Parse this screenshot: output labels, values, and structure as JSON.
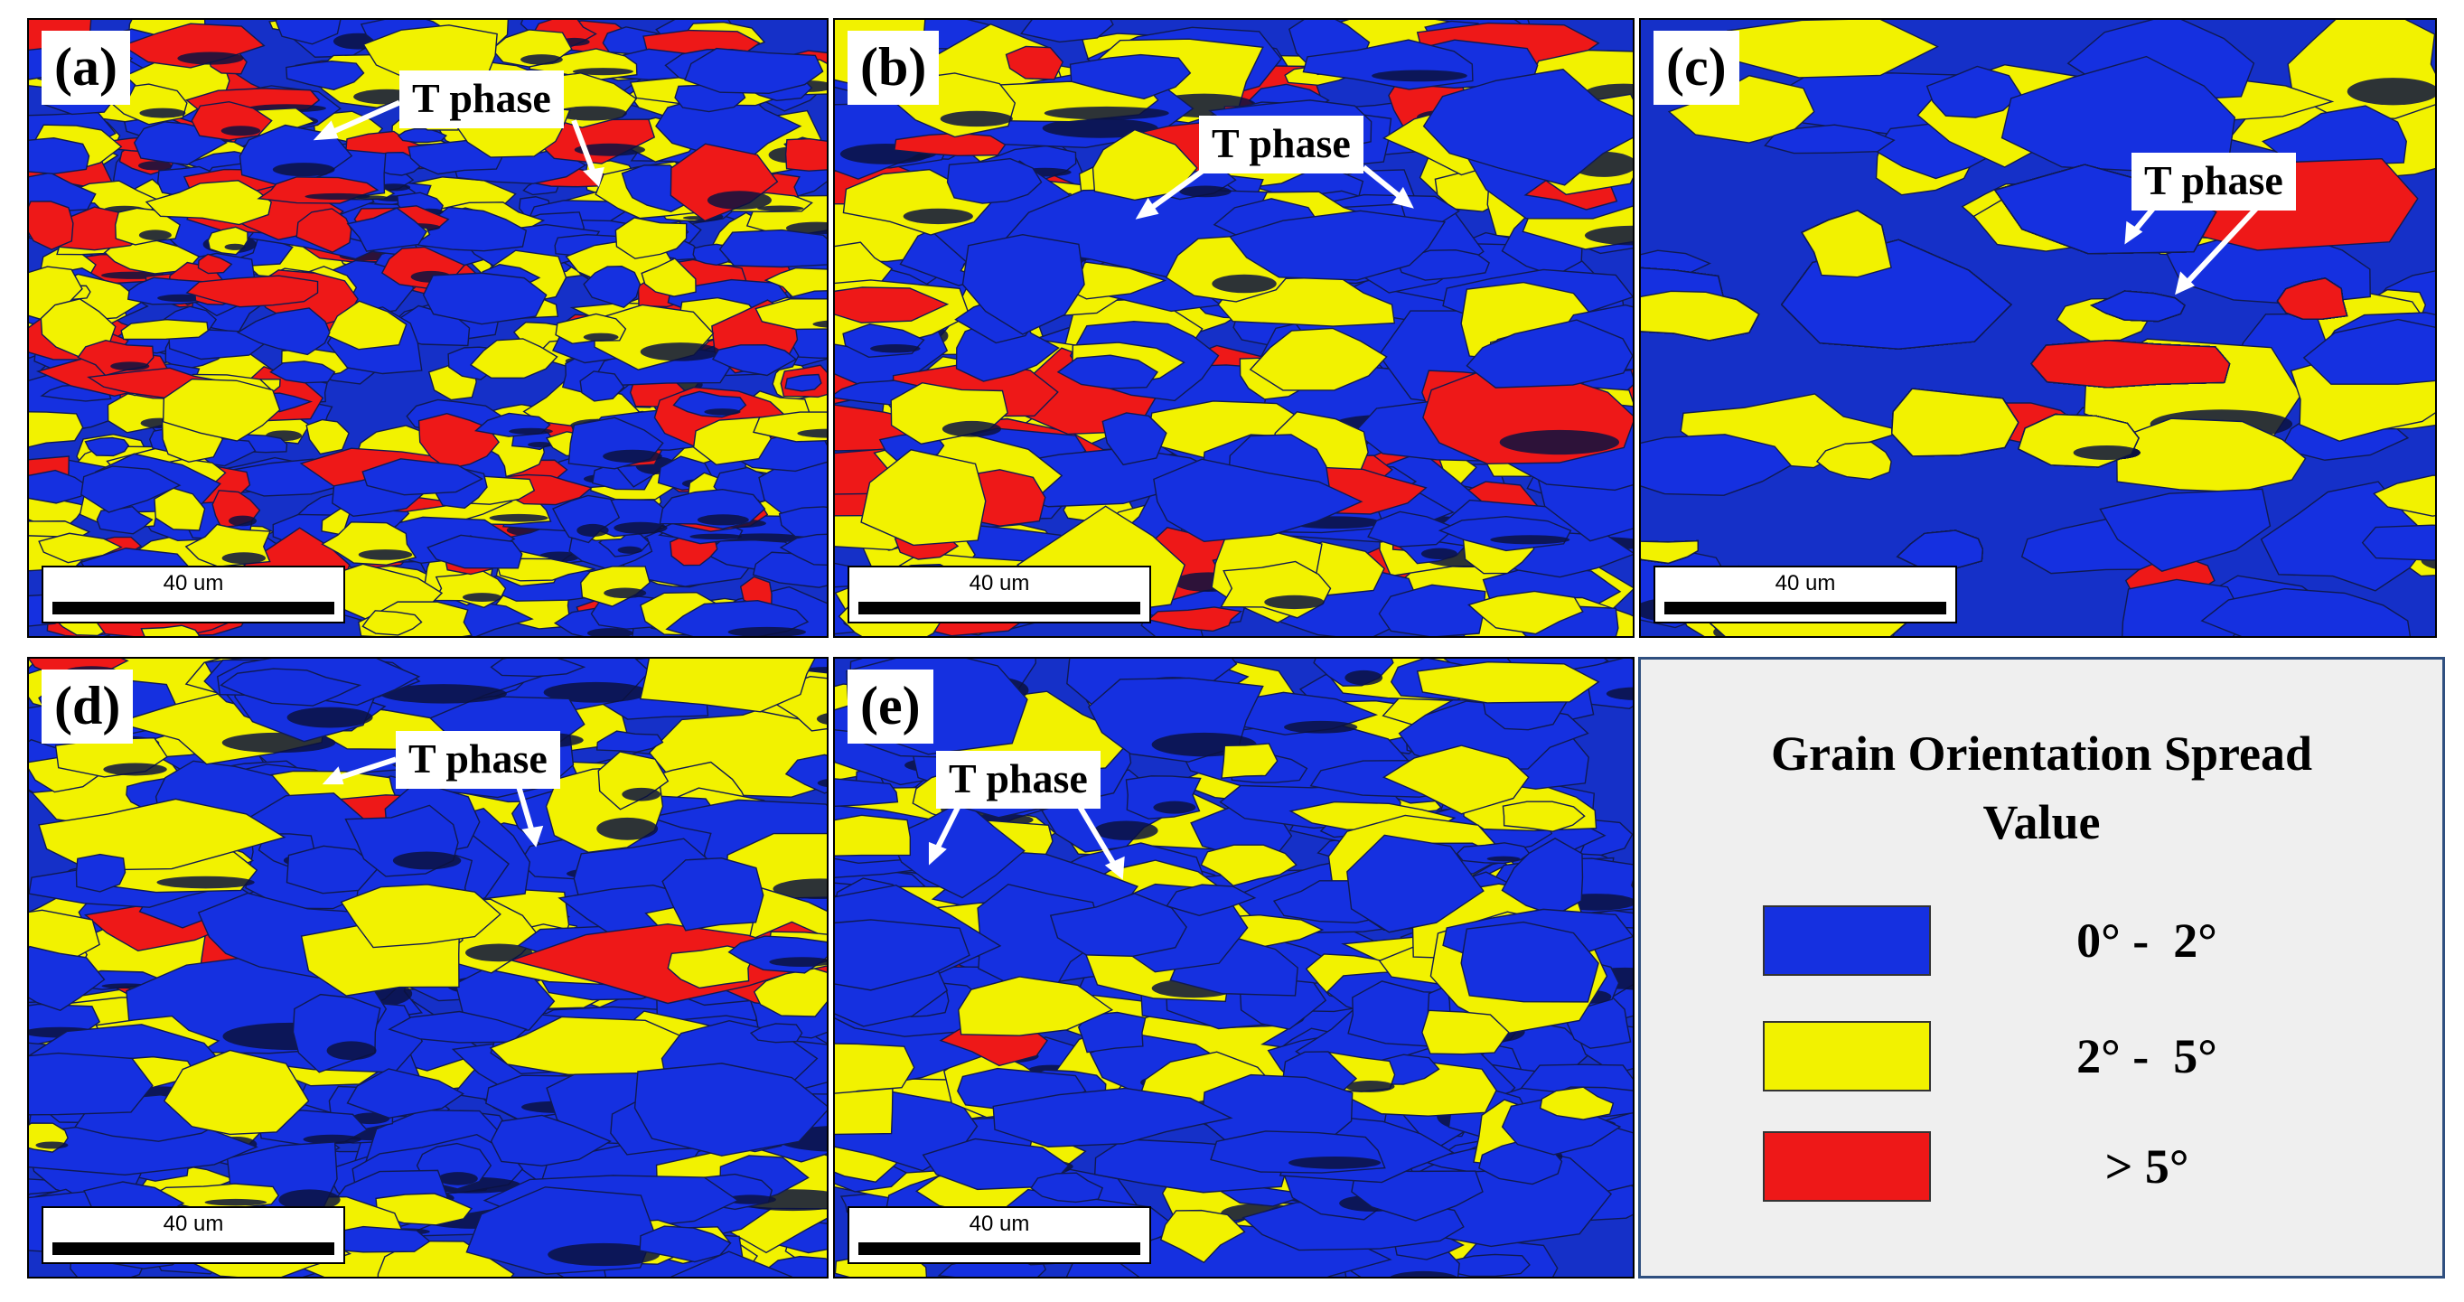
{
  "panels": [
    {
      "id": "a",
      "label": "(a)",
      "t_label": "T phase",
      "scale": "40 um"
    },
    {
      "id": "b",
      "label": "(b)",
      "t_label": "T phase",
      "scale": "40 um"
    },
    {
      "id": "c",
      "label": "(c)",
      "t_label": "T phase",
      "scale": "40 um"
    },
    {
      "id": "d",
      "label": "(d)",
      "t_label": "T phase",
      "scale": "40 um"
    },
    {
      "id": "e",
      "label": "(e)",
      "t_label": "T phase",
      "scale": "40 um"
    }
  ],
  "legend": {
    "title_line1": "Grain Orientation Spread",
    "title_line2": "Value",
    "items": [
      {
        "label": "0° -  2°",
        "color": "#1530e0"
      },
      {
        "label": "2° -  5°",
        "color": "#f2f200"
      },
      {
        "label": "> 5°",
        "color": "#ee1818"
      }
    ]
  }
}
